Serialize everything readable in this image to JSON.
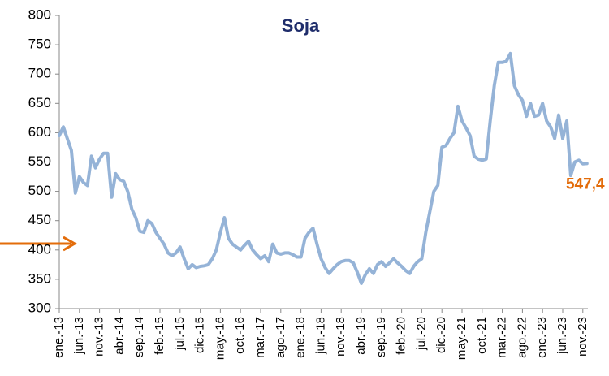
{
  "chart_data": {
    "type": "line",
    "title": "Soja",
    "categories": [
      "ene.-13",
      null,
      null,
      null,
      null,
      "jun.-13",
      null,
      null,
      null,
      null,
      "nov.-13",
      null,
      null,
      null,
      null,
      "abr.-14",
      null,
      null,
      null,
      null,
      "sep.-14",
      null,
      null,
      null,
      null,
      "feb.-15",
      null,
      null,
      null,
      null,
      "jul.-15",
      null,
      null,
      null,
      null,
      "dic.-15",
      null,
      null,
      null,
      null,
      "may.-16",
      null,
      null,
      null,
      null,
      "oct.-16",
      null,
      null,
      null,
      null,
      "mar.-17",
      null,
      null,
      null,
      null,
      "ago.-17",
      null,
      null,
      null,
      null,
      "ene.-18",
      null,
      null,
      null,
      null,
      "jun.-18",
      null,
      null,
      null,
      null,
      "nov.-18",
      null,
      null,
      null,
      null,
      "abr.-19",
      null,
      null,
      null,
      null,
      "sep.-19",
      null,
      null,
      null,
      null,
      "feb.-20",
      null,
      null,
      null,
      null,
      "jul.-20",
      null,
      null,
      null,
      null,
      "dic.-20",
      null,
      null,
      null,
      null,
      "may.-21",
      null,
      null,
      null,
      null,
      "oct.-21",
      null,
      null,
      null,
      null,
      "mar.-22",
      null,
      null,
      null,
      null,
      "ago.-22",
      null,
      null,
      null,
      null,
      "ene.-23",
      null,
      null,
      null,
      null,
      "jun.-23",
      null,
      null,
      null,
      null,
      "nov.-23",
      null
    ],
    "series": [
      {
        "color": "#95b3d7",
        "values": [
          595,
          610,
          590,
          570,
          497,
          525,
          515,
          510,
          560,
          540,
          555,
          565,
          565,
          490,
          530,
          520,
          517,
          500,
          470,
          455,
          432,
          430,
          450,
          445,
          430,
          420,
          410,
          395,
          390,
          395,
          405,
          385,
          368,
          375,
          370,
          372,
          373,
          375,
          385,
          400,
          430,
          455,
          420,
          410,
          405,
          400,
          408,
          415,
          400,
          392,
          385,
          390,
          380,
          410,
          395,
          393,
          395,
          395,
          392,
          388,
          388,
          420,
          430,
          437,
          410,
          385,
          370,
          360,
          368,
          375,
          380,
          382,
          382,
          378,
          362,
          343,
          358,
          368,
          360,
          375,
          380,
          372,
          378,
          385,
          378,
          372,
          365,
          360,
          372,
          380,
          385,
          430,
          465,
          500,
          510,
          575,
          578,
          590,
          600,
          645,
          620,
          608,
          595,
          560,
          555,
          553,
          555,
          620,
          680,
          720,
          720,
          722,
          735,
          680,
          665,
          655,
          628,
          650,
          628,
          630,
          650,
          620,
          610,
          590,
          630,
          590,
          620,
          527,
          550,
          553,
          547,
          547.4
        ],
        "value_labels": [
          null,
          null,
          null,
          null,
          null,
          null,
          null,
          null,
          null,
          null,
          null,
          null,
          null,
          null,
          null,
          null,
          null,
          null,
          null,
          null,
          null,
          null,
          null,
          null,
          null,
          null,
          null,
          null,
          null,
          null,
          null,
          null,
          null,
          null,
          null,
          null,
          null,
          null,
          null,
          null,
          null,
          null,
          null,
          null,
          null,
          null,
          null,
          null,
          null,
          null,
          null,
          null,
          null,
          null,
          null,
          null,
          null,
          null,
          null,
          null,
          null,
          null,
          null,
          null,
          null,
          null,
          null,
          null,
          null,
          null,
          null,
          null,
          null,
          null,
          null,
          null,
          null,
          null,
          null,
          null,
          null,
          null,
          null,
          null,
          null,
          null,
          null,
          null,
          null,
          null,
          null,
          null,
          null,
          null,
          null,
          null,
          null,
          null,
          null,
          null,
          null,
          null,
          null,
          null,
          null,
          null,
          null,
          null,
          null,
          null,
          null,
          null,
          null,
          null,
          null,
          null,
          null,
          null,
          null,
          null,
          null,
          null,
          null,
          null,
          null,
          null,
          null,
          null,
          null,
          null,
          null,
          "547,4"
        ]
      }
    ],
    "ylim": [
      300,
      800
    ],
    "yticks": [
      300,
      350,
      400,
      450,
      500,
      550,
      600,
      650,
      700,
      750,
      800
    ],
    "grid": false
  }
}
